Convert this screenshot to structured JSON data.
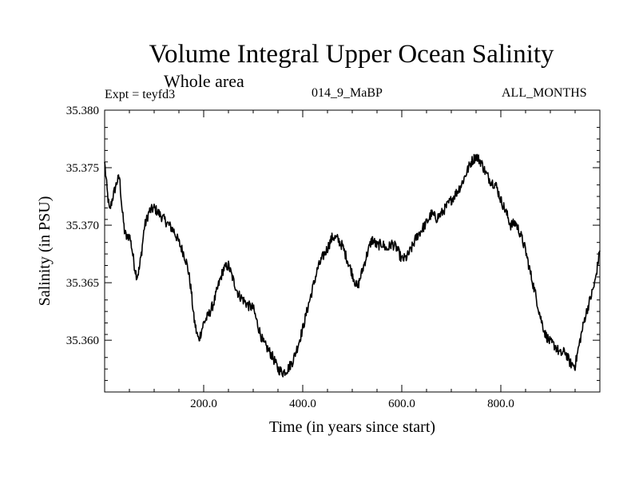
{
  "chart_data": {
    "type": "line",
    "title": "Volume Integral Upper Ocean Salinity",
    "subtitle": "Whole area",
    "expt": "Expt = teyfd3",
    "run_id": "014_9_MaBP",
    "months": "ALL_MONTHS",
    "xlabel": "Time (in years since start)",
    "ylabel": "Salinity (in PSU)",
    "xlim": [
      0,
      1000
    ],
    "ylim": [
      35.3555,
      35.38
    ],
    "xticks": [
      {
        "value": 200,
        "label": "200.0"
      },
      {
        "value": 400,
        "label": "400.0"
      },
      {
        "value": 600,
        "label": "600.0"
      },
      {
        "value": 800,
        "label": "800.0"
      }
    ],
    "yticks": [
      {
        "value": 35.36,
        "label": "35.360"
      },
      {
        "value": 35.365,
        "label": "35.365"
      },
      {
        "value": 35.37,
        "label": "35.370"
      },
      {
        "value": 35.375,
        "label": "35.375"
      },
      {
        "value": 35.38,
        "label": "35.380"
      }
    ],
    "series": [
      {
        "name": "salinity",
        "x": [
          0,
          5,
          10,
          15,
          20,
          25,
          30,
          35,
          40,
          45,
          50,
          55,
          60,
          65,
          70,
          75,
          80,
          90,
          100,
          110,
          120,
          130,
          140,
          150,
          160,
          165,
          170,
          175,
          180,
          185,
          190,
          200,
          210,
          220,
          230,
          240,
          250,
          260,
          270,
          280,
          290,
          300,
          310,
          320,
          330,
          340,
          350,
          360,
          370,
          380,
          390,
          400,
          410,
          420,
          430,
          440,
          450,
          460,
          470,
          480,
          490,
          500,
          510,
          520,
          530,
          540,
          550,
          560,
          570,
          580,
          590,
          600,
          610,
          620,
          630,
          640,
          650,
          660,
          670,
          680,
          690,
          700,
          710,
          720,
          730,
          740,
          750,
          760,
          770,
          780,
          790,
          800,
          810,
          820,
          830,
          840,
          850,
          860,
          870,
          880,
          890,
          900,
          910,
          920,
          930,
          940,
          950,
          960,
          970,
          980,
          990,
          1000
        ],
        "y": [
          35.3755,
          35.373,
          35.3712,
          35.3722,
          35.373,
          35.3738,
          35.3742,
          35.3715,
          35.3695,
          35.3688,
          35.3692,
          35.368,
          35.3665,
          35.3655,
          35.3662,
          35.3678,
          35.3698,
          35.3712,
          35.3715,
          35.371,
          35.3705,
          35.37,
          35.3695,
          35.3685,
          35.3675,
          35.3668,
          35.3658,
          35.3642,
          35.362,
          35.3608,
          35.36,
          35.3615,
          35.3622,
          35.3632,
          35.3648,
          35.3662,
          35.3665,
          35.3652,
          35.364,
          35.3635,
          35.363,
          35.3628,
          35.3612,
          35.3598,
          35.3592,
          35.3585,
          35.3575,
          35.3572,
          35.3575,
          35.3582,
          35.3595,
          35.361,
          35.3628,
          35.3645,
          35.3662,
          35.3672,
          35.368,
          35.369,
          35.3688,
          35.3682,
          35.367,
          35.3658,
          35.3645,
          35.366,
          35.3675,
          35.3688,
          35.3682,
          35.3684,
          35.3679,
          35.3684,
          35.368,
          35.367,
          35.3672,
          35.368,
          35.369,
          35.3696,
          35.3702,
          35.371,
          35.3706,
          35.371,
          35.3716,
          35.3722,
          35.3728,
          35.3735,
          35.3745,
          35.3755,
          35.376,
          35.3755,
          35.3745,
          35.3738,
          35.3735,
          35.3722,
          35.3712,
          35.37,
          35.3702,
          35.3692,
          35.3678,
          35.3658,
          35.364,
          35.362,
          35.3605,
          35.3598,
          35.3595,
          35.3588,
          35.359,
          35.358,
          35.3578,
          35.36,
          35.362,
          35.3635,
          35.365,
          35.3678
        ]
      }
    ]
  }
}
